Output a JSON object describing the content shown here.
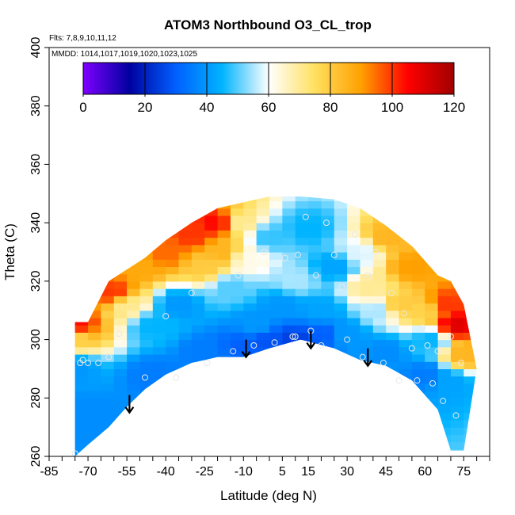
{
  "chart_data": {
    "type": "heatmap",
    "title": "ATOM3 Northbound O3_CL_trop",
    "annotations": [
      "Flts: 7,8,9,10,11,12",
      "MMDD: 1014,1017,1019,1020,1023,1025"
    ],
    "xlabel": "Latitude (deg N)",
    "ylabel": "Theta (C)",
    "xlim": [
      -85,
      85
    ],
    "ylim": [
      260,
      400
    ],
    "xticks": [
      -85,
      -70,
      -55,
      -40,
      -25,
      -10,
      5,
      15,
      30,
      45,
      60,
      75
    ],
    "yticks": [
      260,
      280,
      300,
      320,
      340,
      360,
      380,
      400
    ],
    "colorbar": {
      "label": "",
      "range": [
        0,
        120
      ],
      "ticks": [
        0,
        20,
        40,
        60,
        80,
        100,
        120
      ],
      "colors": [
        "#7f00ff",
        "#0000a0",
        "#0060ff",
        "#00b4ff",
        "#ffffff",
        "#ffe060",
        "#ffa000",
        "#ff0000",
        "#a00000"
      ]
    },
    "grid": false,
    "envelope": [
      {
        "lat": -75,
        "top": 306,
        "bottom": 260
      },
      {
        "lat": -70,
        "top": 306,
        "bottom": 264
      },
      {
        "lat": -62,
        "top": 320,
        "bottom": 270
      },
      {
        "lat": -55,
        "top": 324,
        "bottom": 277
      },
      {
        "lat": -48,
        "top": 328,
        "bottom": 283
      },
      {
        "lat": -40,
        "top": 334,
        "bottom": 288
      },
      {
        "lat": -30,
        "top": 340,
        "bottom": 292
      },
      {
        "lat": -20,
        "top": 345,
        "bottom": 294
      },
      {
        "lat": -10,
        "top": 347,
        "bottom": 294
      },
      {
        "lat": 0,
        "top": 349,
        "bottom": 297
      },
      {
        "lat": 12,
        "top": 349,
        "bottom": 300
      },
      {
        "lat": 25,
        "top": 348,
        "bottom": 297
      },
      {
        "lat": 35,
        "top": 345,
        "bottom": 293
      },
      {
        "lat": 45,
        "top": 339,
        "bottom": 291
      },
      {
        "lat": 55,
        "top": 332,
        "bottom": 286
      },
      {
        "lat": 65,
        "top": 322,
        "bottom": 276
      },
      {
        "lat": 70,
        "top": 320,
        "bottom": 262
      },
      {
        "lat": 75,
        "top": 312,
        "bottom": 262
      },
      {
        "lat": 80,
        "top": 290,
        "bottom": 290
      }
    ],
    "values": [
      {
        "lat": -75,
        "theta": 305,
        "o3": 105
      },
      {
        "lat": -75,
        "theta": 301,
        "o3": 78
      },
      {
        "lat": -75,
        "theta": 290,
        "o3": 40
      },
      {
        "lat": -70,
        "theta": 275,
        "o3": 38
      },
      {
        "lat": -60,
        "theta": 316,
        "o3": 100
      },
      {
        "lat": -55,
        "theta": 312,
        "o3": 70
      },
      {
        "lat": -50,
        "theta": 325,
        "o3": 88
      },
      {
        "lat": -45,
        "theta": 305,
        "o3": 45
      },
      {
        "lat": -40,
        "theta": 330,
        "o3": 95
      },
      {
        "lat": -35,
        "theta": 312,
        "o3": 40
      },
      {
        "lat": -30,
        "theta": 336,
        "o3": 100
      },
      {
        "lat": -25,
        "theta": 325,
        "o3": 80
      },
      {
        "lat": -20,
        "theta": 340,
        "o3": 105
      },
      {
        "lat": -18,
        "theta": 330,
        "o3": 85
      },
      {
        "lat": -15,
        "theta": 318,
        "o3": 50
      },
      {
        "lat": -12,
        "theta": 340,
        "o3": 70
      },
      {
        "lat": -8,
        "theta": 328,
        "o3": 62
      },
      {
        "lat": -5,
        "theta": 305,
        "o3": 40
      },
      {
        "lat": 0,
        "theta": 335,
        "o3": 48
      },
      {
        "lat": 5,
        "theta": 312,
        "o3": 40
      },
      {
        "lat": 10,
        "theta": 320,
        "o3": 55
      },
      {
        "lat": 15,
        "theta": 338,
        "o3": 45
      },
      {
        "lat": 20,
        "theta": 310,
        "o3": 42
      },
      {
        "lat": 25,
        "theta": 325,
        "o3": 42
      },
      {
        "lat": 30,
        "theta": 302,
        "o3": 40
      },
      {
        "lat": 35,
        "theta": 330,
        "o3": 58
      },
      {
        "lat": 38,
        "theta": 318,
        "o3": 70
      },
      {
        "lat": 42,
        "theta": 310,
        "o3": 55
      },
      {
        "lat": 45,
        "theta": 335,
        "o3": 85
      },
      {
        "lat": 50,
        "theta": 312,
        "o3": 80
      },
      {
        "lat": 55,
        "theta": 325,
        "o3": 90
      },
      {
        "lat": 60,
        "theta": 310,
        "o3": 78
      },
      {
        "lat": 62,
        "theta": 300,
        "o3": 45
      },
      {
        "lat": 68,
        "theta": 312,
        "o3": 100
      },
      {
        "lat": 72,
        "theta": 305,
        "o3": 110
      },
      {
        "lat": 75,
        "theta": 295,
        "o3": 85
      },
      {
        "lat": 70,
        "theta": 285,
        "o3": 42
      },
      {
        "lat": 60,
        "theta": 288,
        "o3": 35
      },
      {
        "lat": 45,
        "theta": 296,
        "o3": 38
      },
      {
        "lat": 20,
        "theta": 302,
        "o3": 30
      },
      {
        "lat": 10,
        "theta": 300,
        "o3": 25
      },
      {
        "lat": 0,
        "theta": 300,
        "o3": 28
      },
      {
        "lat": -10,
        "theta": 298,
        "o3": 30
      },
      {
        "lat": -25,
        "theta": 296,
        "o3": 35
      },
      {
        "lat": -45,
        "theta": 288,
        "o3": 35
      },
      {
        "lat": -65,
        "theta": 272,
        "o3": 38
      }
    ],
    "sample_points": [
      {
        "lat": -75,
        "theta": 261
      },
      {
        "lat": -73,
        "theta": 292
      },
      {
        "lat": -72,
        "theta": 293
      },
      {
        "lat": -70,
        "theta": 292
      },
      {
        "lat": -66,
        "theta": 292
      },
      {
        "lat": -62,
        "theta": 294
      },
      {
        "lat": -58,
        "theta": 302
      },
      {
        "lat": -48,
        "theta": 287
      },
      {
        "lat": -40,
        "theta": 308
      },
      {
        "lat": -36,
        "theta": 287
      },
      {
        "lat": -30,
        "theta": 316
      },
      {
        "lat": -24,
        "theta": 292
      },
      {
        "lat": -22,
        "theta": 319
      },
      {
        "lat": -14,
        "theta": 296
      },
      {
        "lat": -12,
        "theta": 322
      },
      {
        "lat": -6,
        "theta": 298
      },
      {
        "lat": -2,
        "theta": 330
      },
      {
        "lat": 2,
        "theta": 299
      },
      {
        "lat": 6,
        "theta": 328
      },
      {
        "lat": 9,
        "theta": 301
      },
      {
        "lat": 10,
        "theta": 301
      },
      {
        "lat": 11,
        "theta": 329
      },
      {
        "lat": 14,
        "theta": 342
      },
      {
        "lat": 16,
        "theta": 303
      },
      {
        "lat": 18,
        "theta": 322
      },
      {
        "lat": 20,
        "theta": 298
      },
      {
        "lat": 22,
        "theta": 340
      },
      {
        "lat": 25,
        "theta": 329
      },
      {
        "lat": 28,
        "theta": 318
      },
      {
        "lat": 30,
        "theta": 300
      },
      {
        "lat": 33,
        "theta": 336
      },
      {
        "lat": 36,
        "theta": 294
      },
      {
        "lat": 38,
        "theta": 322
      },
      {
        "lat": 41,
        "theta": 330
      },
      {
        "lat": 44,
        "theta": 292
      },
      {
        "lat": 47,
        "theta": 316
      },
      {
        "lat": 50,
        "theta": 286
      },
      {
        "lat": 52,
        "theta": 309
      },
      {
        "lat": 55,
        "theta": 297
      },
      {
        "lat": 57,
        "theta": 286
      },
      {
        "lat": 59,
        "theta": 304
      },
      {
        "lat": 61,
        "theta": 298
      },
      {
        "lat": 63,
        "theta": 285
      },
      {
        "lat": 65,
        "theta": 296
      },
      {
        "lat": 67,
        "theta": 279
      },
      {
        "lat": 70,
        "theta": 301
      },
      {
        "lat": 72,
        "theta": 274
      },
      {
        "lat": 74,
        "theta": 292
      }
    ],
    "arrows": [
      {
        "lat": -54,
        "theta": 281
      },
      {
        "lat": -9,
        "theta": 300
      },
      {
        "lat": 16,
        "theta": 303
      },
      {
        "lat": 38,
        "theta": 297
      }
    ]
  }
}
